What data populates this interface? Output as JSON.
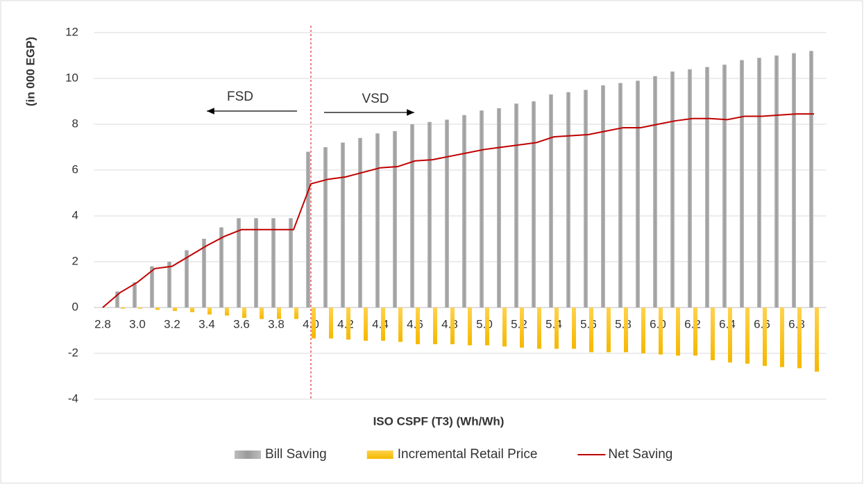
{
  "chart_data": {
    "type": "bar_line",
    "x_label": "ISO CSPF (T3) (Wh/Wh)",
    "y_label": "(in 000 EGP)",
    "categories": [
      "2.8",
      null,
      "3.0",
      null,
      "3.2",
      null,
      "3.4",
      null,
      "3.6",
      null,
      "3.8",
      null,
      "4.0",
      null,
      "4.2",
      null,
      "4.4",
      null,
      "4.6",
      null,
      "4.8",
      null,
      "5.0",
      null,
      "5.2",
      null,
      "5.4",
      null,
      "5.6",
      null,
      "5.8",
      null,
      "6.0",
      null,
      "6.2",
      null,
      "6.4",
      null,
      "6.6",
      null,
      "6.8",
      null
    ],
    "series": [
      {
        "name": "Bill Saving",
        "kind": "bar",
        "color": "#a6a6a6",
        "values": [
          0,
          0.7,
          1.1,
          1.8,
          2.0,
          2.5,
          3.0,
          3.5,
          3.9,
          3.9,
          3.9,
          3.9,
          6.8,
          7.0,
          7.2,
          7.4,
          7.6,
          7.7,
          8.0,
          8.1,
          8.2,
          8.4,
          8.6,
          8.7,
          8.9,
          9.0,
          9.3,
          9.4,
          9.5,
          9.7,
          9.8,
          9.9,
          10.1,
          10.3,
          10.4,
          10.5,
          10.6,
          10.8,
          10.9,
          11.0,
          11.1,
          11.2
        ]
      },
      {
        "name": "Incremental Retail Price",
        "kind": "bar",
        "color": "#ffc000",
        "values": [
          0,
          -0.05,
          -0.05,
          -0.1,
          -0.15,
          -0.2,
          -0.3,
          -0.35,
          -0.45,
          -0.5,
          -0.5,
          -0.5,
          -1.35,
          -1.35,
          -1.4,
          -1.45,
          -1.45,
          -1.5,
          -1.6,
          -1.6,
          -1.6,
          -1.65,
          -1.65,
          -1.7,
          -1.75,
          -1.8,
          -1.8,
          -1.8,
          -1.95,
          -1.95,
          -1.95,
          -2.0,
          -2.05,
          -2.1,
          -2.1,
          -2.3,
          -2.4,
          -2.45,
          -2.55,
          -2.6,
          -2.65,
          -2.8
        ]
      },
      {
        "name": "Net Saving",
        "kind": "line",
        "color": "#c00000",
        "values": [
          0,
          0.65,
          1.1,
          1.7,
          1.8,
          2.25,
          2.7,
          3.1,
          3.4,
          3.4,
          3.4,
          3.4,
          5.4,
          5.6,
          5.7,
          5.9,
          6.1,
          6.15,
          6.4,
          6.45,
          6.6,
          6.75,
          6.9,
          7.0,
          7.1,
          7.2,
          7.45,
          7.5,
          7.55,
          7.7,
          7.85,
          7.85,
          8.0,
          8.15,
          8.25,
          8.25,
          8.2,
          8.35,
          8.35,
          8.4,
          8.45,
          8.45
        ]
      }
    ],
    "ylim": [
      -4,
      12
    ],
    "yticks": [
      -4,
      -2,
      0,
      2,
      4,
      6,
      8,
      10,
      12
    ],
    "grid": true,
    "legend": "bottom",
    "reference_line": {
      "x": "4.0",
      "color": "#e03030"
    },
    "annotations": [
      "FSD",
      "VSD"
    ]
  }
}
